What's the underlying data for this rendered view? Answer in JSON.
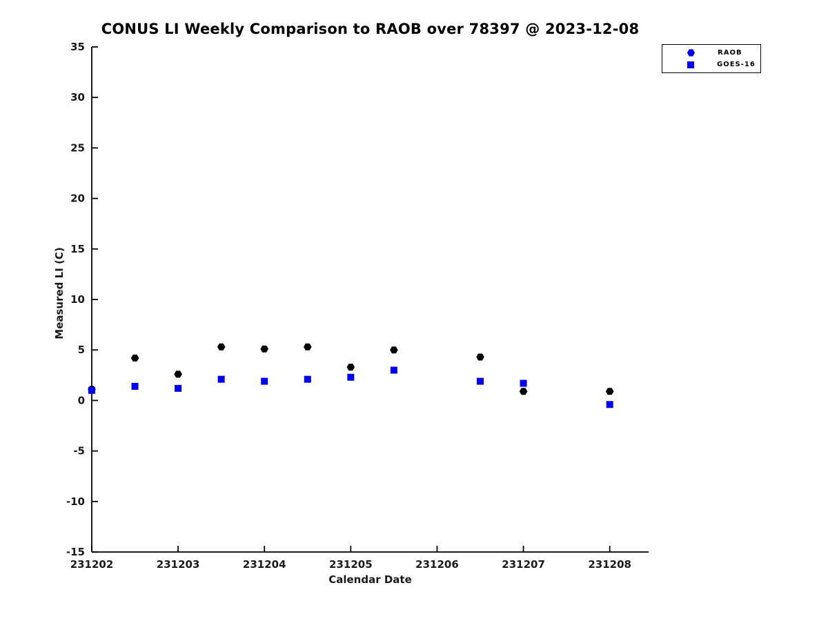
{
  "chart_data": {
    "type": "scatter",
    "title": "CONUS LI Weekly Comparison to RAOB over 78397 @ 2023-12-08",
    "xlabel": "Calendar Date",
    "ylabel": "Measured LI (C)",
    "x_tick_labels": [
      "231202",
      "231203",
      "231204",
      "231205",
      "231206",
      "231207",
      "231208"
    ],
    "x_tick_positions": [
      0,
      1,
      2,
      3,
      4,
      5,
      6
    ],
    "x_note": "x values are day offsets from 231202 (0.5 = 12Z sounding)",
    "xlim": [
      0,
      6.45
    ],
    "ylim": [
      -15,
      35
    ],
    "y_ticks": [
      35,
      30,
      25,
      20,
      15,
      10,
      5,
      0,
      -5,
      -10,
      -15
    ],
    "grid": false,
    "legend_position": "top-right",
    "axis_color": "#000000",
    "tick_label_color": "#1a1a1a",
    "series": [
      {
        "name": "RAOB",
        "marker": "hexagon",
        "point_color": "#000000",
        "legend_marker_color": "#0000ee",
        "x": [
          0,
          0.5,
          1,
          1.5,
          2,
          2.5,
          3,
          3.5,
          4.5,
          5,
          6
        ],
        "y": [
          1.1,
          4.2,
          2.6,
          5.3,
          5.1,
          5.3,
          3.3,
          5.0,
          4.3,
          0.9,
          0.9
        ]
      },
      {
        "name": "GOES-16",
        "marker": "square",
        "point_color": "#0000ee",
        "legend_marker_color": "#0000ee",
        "x": [
          0,
          0.5,
          1,
          1.5,
          2,
          2.5,
          3,
          3.5,
          4.5,
          5,
          6
        ],
        "y": [
          1.0,
          1.4,
          1.2,
          2.1,
          1.9,
          2.1,
          2.3,
          3.0,
          1.9,
          1.7,
          -0.4
        ]
      }
    ]
  }
}
